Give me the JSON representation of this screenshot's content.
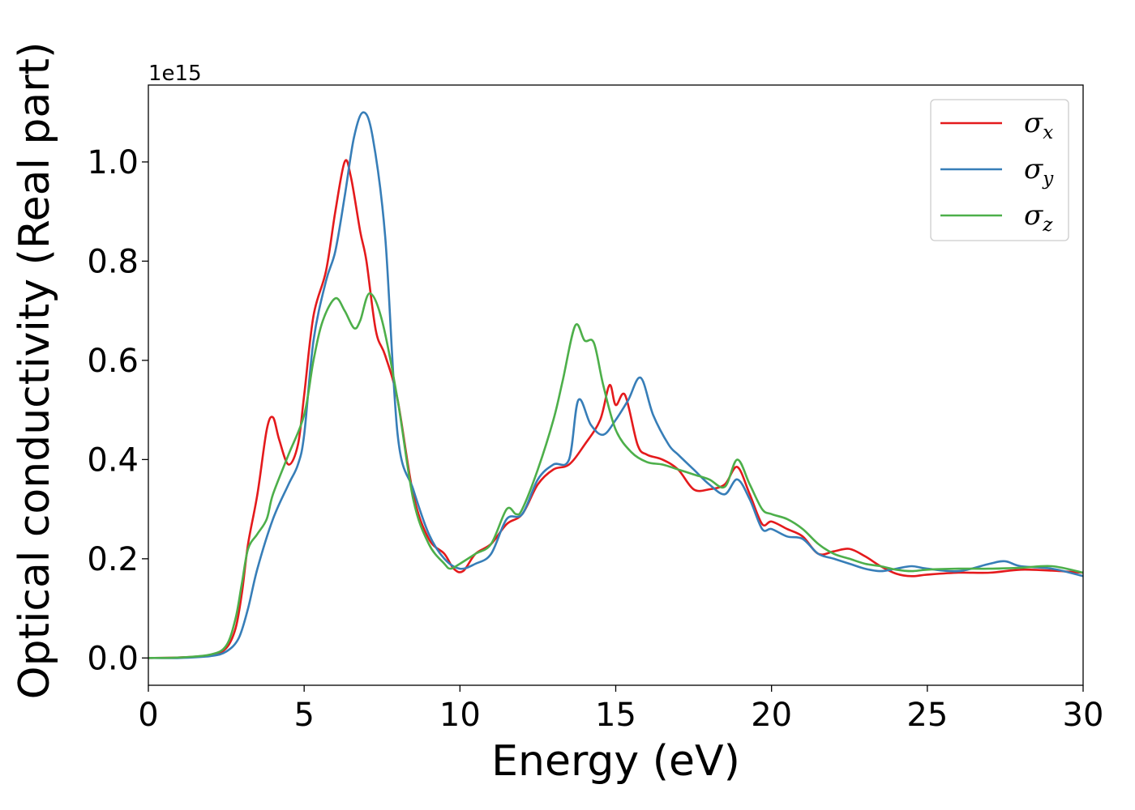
{
  "chart_data": {
    "type": "line",
    "title": "",
    "xlabel": "Energy (eV)",
    "ylabel": "Optical conductivity (Real part)",
    "y_offset_text": "1e15",
    "y_scale_factor": 1000000000000000.0,
    "xlim": [
      0,
      30
    ],
    "ylim": [
      -0.055,
      1.155
    ],
    "x_ticks": [
      0,
      5,
      10,
      15,
      20,
      25,
      30
    ],
    "x_tick_labels": [
      "0",
      "5",
      "10",
      "15",
      "20",
      "25",
      "30"
    ],
    "y_ticks": [
      0.0,
      0.2,
      0.4,
      0.6,
      0.8,
      1.0
    ],
    "y_tick_labels": [
      "0.0",
      "0.2",
      "0.4",
      "0.6",
      "0.8",
      "1.0"
    ],
    "grid": false,
    "legend_position": "top-right",
    "series": [
      {
        "name": "σx",
        "legend_symbol": "σ",
        "legend_sub": "x",
        "color": "#e41a1c",
        "x": [
          0,
          1,
          2,
          2.5,
          2.8,
          3.0,
          3.2,
          3.5,
          3.8,
          4.0,
          4.2,
          4.5,
          4.8,
          5.0,
          5.3,
          5.7,
          6.0,
          6.3,
          6.5,
          6.8,
          7.0,
          7.3,
          7.6,
          8.0,
          8.5,
          9.0,
          9.5,
          9.8,
          10.1,
          10.5,
          11.0,
          11.5,
          12.0,
          12.5,
          13.0,
          13.5,
          14.0,
          14.5,
          14.8,
          15.0,
          15.3,
          15.7,
          16.0,
          16.5,
          17.0,
          17.5,
          18.0,
          18.5,
          18.9,
          19.3,
          19.7,
          20.0,
          20.5,
          21.0,
          21.5,
          22.0,
          22.5,
          23.0,
          23.5,
          24.0,
          24.5,
          25.0,
          26.0,
          27.0,
          28.0,
          29.0,
          30.0
        ],
        "y": [
          0.0,
          0.001,
          0.006,
          0.02,
          0.06,
          0.13,
          0.23,
          0.33,
          0.46,
          0.485,
          0.44,
          0.39,
          0.43,
          0.53,
          0.69,
          0.78,
          0.9,
          1.0,
          0.97,
          0.86,
          0.8,
          0.66,
          0.61,
          0.52,
          0.33,
          0.24,
          0.21,
          0.18,
          0.175,
          0.21,
          0.23,
          0.27,
          0.29,
          0.35,
          0.38,
          0.39,
          0.43,
          0.48,
          0.55,
          0.51,
          0.53,
          0.43,
          0.41,
          0.4,
          0.38,
          0.34,
          0.34,
          0.35,
          0.385,
          0.33,
          0.27,
          0.275,
          0.26,
          0.245,
          0.21,
          0.215,
          0.22,
          0.205,
          0.185,
          0.17,
          0.165,
          0.168,
          0.172,
          0.172,
          0.178,
          0.176,
          0.172
        ]
      },
      {
        "name": "σy",
        "legend_symbol": "σ",
        "legend_sub": "y",
        "color": "#377eb8",
        "x": [
          0,
          1,
          2,
          2.5,
          2.9,
          3.2,
          3.5,
          4.0,
          4.5,
          4.8,
          5.0,
          5.3,
          5.7,
          6.0,
          6.3,
          6.6,
          6.9,
          7.2,
          7.6,
          8.0,
          8.5,
          9.0,
          9.5,
          10.0,
          10.5,
          11.0,
          11.5,
          12.0,
          12.5,
          13.0,
          13.5,
          13.8,
          14.2,
          14.6,
          15.0,
          15.4,
          15.8,
          16.2,
          16.7,
          17.0,
          17.5,
          18.0,
          18.5,
          18.9,
          19.3,
          19.7,
          20.0,
          20.5,
          21.0,
          21.5,
          22.0,
          22.5,
          23.0,
          23.5,
          24.0,
          24.5,
          25.0,
          26.0,
          27.0,
          27.5,
          28.0,
          29.0,
          30.0
        ],
        "y": [
          0.0,
          0.0,
          0.004,
          0.013,
          0.04,
          0.1,
          0.18,
          0.28,
          0.35,
          0.39,
          0.45,
          0.64,
          0.76,
          0.82,
          0.93,
          1.05,
          1.1,
          1.05,
          0.85,
          0.45,
          0.34,
          0.25,
          0.2,
          0.18,
          0.19,
          0.21,
          0.28,
          0.29,
          0.36,
          0.39,
          0.4,
          0.52,
          0.47,
          0.45,
          0.48,
          0.52,
          0.565,
          0.49,
          0.43,
          0.41,
          0.38,
          0.35,
          0.33,
          0.36,
          0.32,
          0.26,
          0.26,
          0.245,
          0.24,
          0.21,
          0.2,
          0.19,
          0.18,
          0.175,
          0.18,
          0.185,
          0.18,
          0.175,
          0.19,
          0.195,
          0.185,
          0.18,
          0.165
        ]
      },
      {
        "name": "σz",
        "legend_symbol": "σ",
        "legend_sub": "z",
        "color": "#4daf4a",
        "x": [
          0,
          1,
          2,
          2.5,
          2.8,
          3.0,
          3.2,
          3.5,
          3.8,
          4.0,
          4.5,
          5.0,
          5.3,
          5.6,
          6.0,
          6.3,
          6.6,
          6.8,
          7.1,
          7.5,
          8.0,
          8.5,
          9.0,
          9.5,
          9.7,
          10.0,
          10.5,
          11.0,
          11.5,
          11.8,
          12.0,
          12.5,
          13.0,
          13.3,
          13.7,
          14.0,
          14.3,
          14.6,
          15.0,
          15.5,
          16.0,
          16.5,
          17.0,
          17.5,
          18.0,
          18.5,
          18.9,
          19.3,
          19.7,
          20.0,
          20.5,
          21.0,
          21.5,
          22.0,
          22.5,
          23.0,
          23.5,
          24.0,
          24.5,
          25.0,
          26.0,
          27.0,
          28.0,
          29.0,
          30.0
        ],
        "y": [
          0.0,
          0.001,
          0.007,
          0.025,
          0.08,
          0.15,
          0.22,
          0.25,
          0.28,
          0.33,
          0.41,
          0.49,
          0.6,
          0.68,
          0.725,
          0.7,
          0.665,
          0.68,
          0.735,
          0.68,
          0.52,
          0.32,
          0.23,
          0.19,
          0.18,
          0.19,
          0.21,
          0.23,
          0.3,
          0.29,
          0.3,
          0.38,
          0.48,
          0.56,
          0.67,
          0.64,
          0.635,
          0.55,
          0.46,
          0.415,
          0.395,
          0.39,
          0.38,
          0.37,
          0.36,
          0.345,
          0.4,
          0.35,
          0.3,
          0.29,
          0.28,
          0.26,
          0.23,
          0.21,
          0.2,
          0.19,
          0.185,
          0.178,
          0.175,
          0.178,
          0.18,
          0.18,
          0.182,
          0.185,
          0.172
        ]
      }
    ]
  }
}
